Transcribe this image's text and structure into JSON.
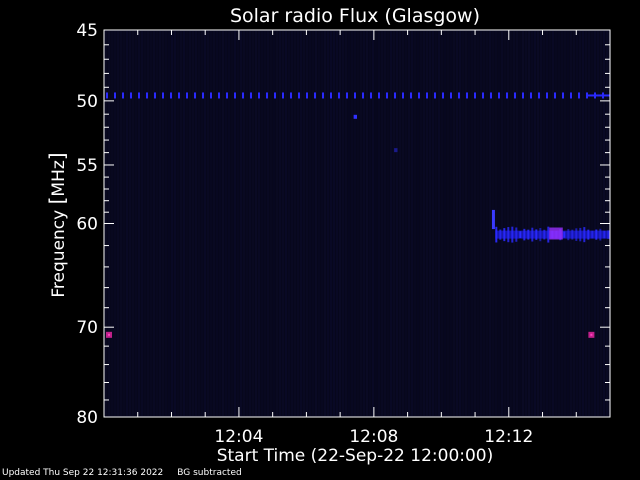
{
  "chart_data": {
    "type": "heatmap",
    "title": "Solar radio Flux (Glasgow)",
    "xlabel": "Start Time (22-Sep-22 12:00:00)",
    "ylabel_prefix": "Frequency ",
    "ylabel_bracket_open": "[",
    "ylabel_unit": "MHz",
    "ylabel_bracket_close": "]",
    "x_unit": "minutes after 12:00",
    "xlim": [
      0,
      15
    ],
    "y_scale": "log",
    "ylim": [
      80,
      45
    ],
    "x_ticks": [
      {
        "value": 4,
        "label": "12:04"
      },
      {
        "value": 8,
        "label": "12:08"
      },
      {
        "value": 12,
        "label": "12:12"
      }
    ],
    "y_ticks": [
      {
        "value": 45,
        "label": "45"
      },
      {
        "value": 50,
        "label": "50"
      },
      {
        "value": 55,
        "label": "55"
      },
      {
        "value": 60,
        "label": "60"
      },
      {
        "value": 70,
        "label": "70"
      },
      {
        "value": 80,
        "label": "80"
      }
    ],
    "y_minor_ticks": [
      46,
      47,
      48,
      49,
      51,
      52,
      53,
      54,
      56,
      57,
      58,
      59,
      62,
      64,
      66,
      68,
      72,
      74,
      76,
      78
    ],
    "x_minor_ticks": [
      1,
      2,
      3,
      5,
      6,
      7,
      9,
      10,
      11,
      13,
      14
    ],
    "background_color": "#07071c",
    "features": [
      {
        "name": "interference-line",
        "freq_mhz": 49.6,
        "x_start": 0,
        "x_end": 15,
        "color": "#2a2aff",
        "intensity": "medium"
      },
      {
        "name": "burst-band",
        "freq_mhz": 61.0,
        "x_start": 11.6,
        "x_end": 15,
        "color": "#2a2aff",
        "intensity": "high"
      },
      {
        "name": "burst-onset",
        "freq_mhz": 59.5,
        "x_start": 11.5,
        "x_end": 11.7,
        "color": "#3a3aff",
        "intensity": "medium"
      },
      {
        "name": "hot-spot",
        "freq_mhz": 60.9,
        "x_start": 13.2,
        "x_end": 13.6,
        "color": "#9a30ff",
        "intensity": "high"
      },
      {
        "name": "left-marker",
        "freq_mhz": 70.8,
        "x_start": 0.0,
        "x_end": 0.3,
        "color": "#c0208a",
        "intensity": "high"
      },
      {
        "name": "right-marker",
        "freq_mhz": 70.8,
        "x_start": 14.3,
        "x_end": 14.5,
        "color": "#c0208a",
        "intensity": "high"
      },
      {
        "name": "blip-1",
        "freq_mhz": 51.2,
        "x_start": 7.4,
        "x_end": 7.5,
        "color": "#3030ff",
        "intensity": "medium"
      },
      {
        "name": "blip-2",
        "freq_mhz": 53.8,
        "x_start": 8.6,
        "x_end": 8.7,
        "color": "#1a1a8a",
        "intensity": "low"
      }
    ]
  },
  "footer": {
    "updated": "Updated Thu Sep 22 12:31:36 2022",
    "bg_note": "BG subtracted"
  }
}
